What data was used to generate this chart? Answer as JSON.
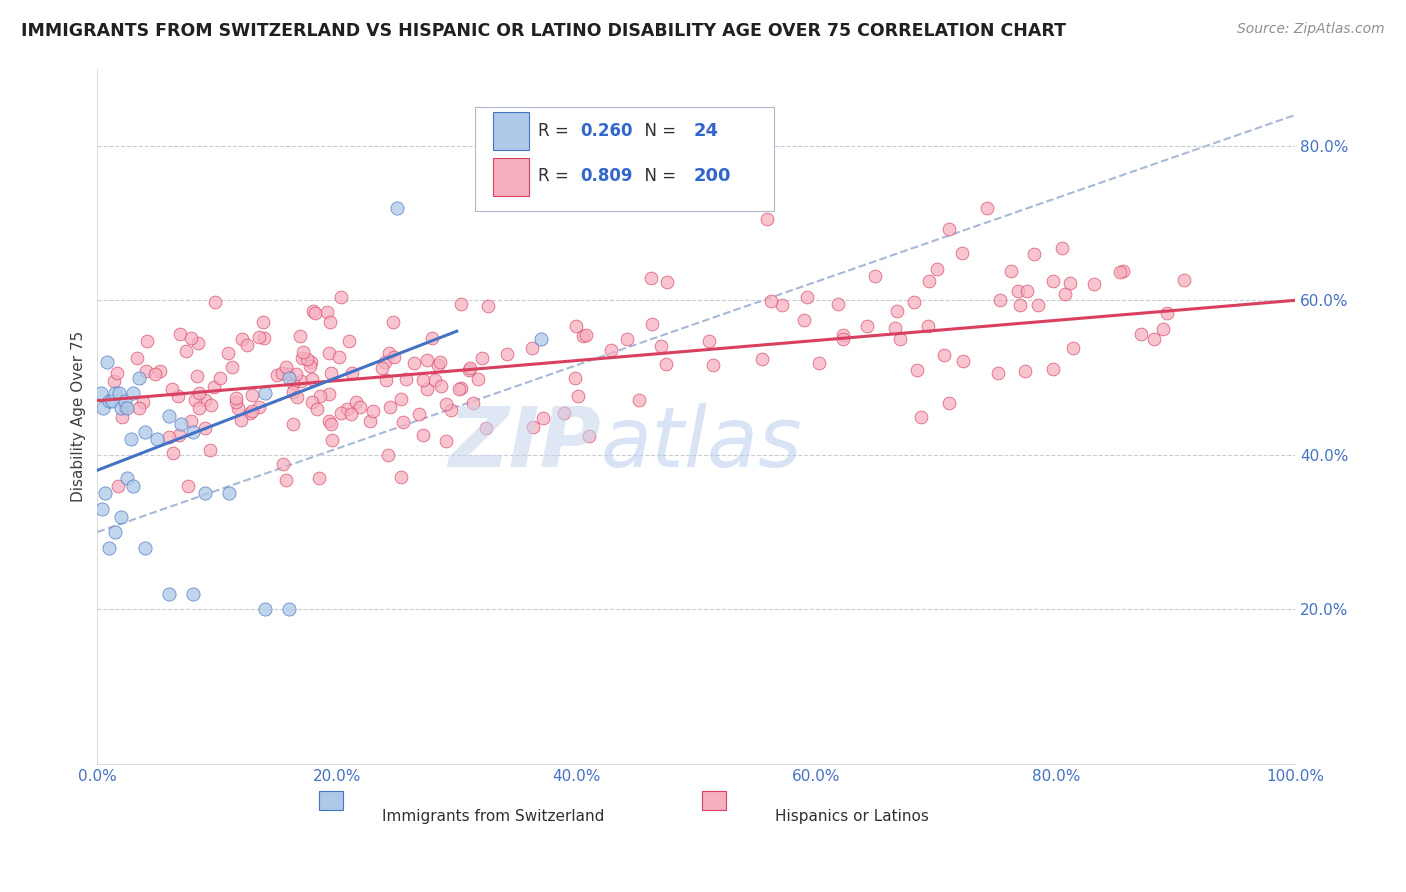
{
  "title": "IMMIGRANTS FROM SWITZERLAND VS HISPANIC OR LATINO DISABILITY AGE OVER 75 CORRELATION CHART",
  "source": "Source: ZipAtlas.com",
  "ylabel": "Disability Age Over 75",
  "r_swiss": 0.26,
  "n_swiss": 24,
  "r_hispanic": 0.809,
  "n_hispanic": 200,
  "color_swiss": "#adc8e8",
  "color_hispanic": "#f5b0c0",
  "trendline_swiss": "#4472c4",
  "trendline_hispanic": "#d94060",
  "trendline_dashed_color": "#a8b8d8",
  "watermark_zip": "ZIP",
  "watermark_atlas": "atlas",
  "watermark_zip_color": "#c8d8f0",
  "watermark_atlas_color": "#b8cce8",
  "background_color": "#ffffff",
  "grid_color": "#c8ccd8",
  "tick_label_color": "#4472c4",
  "xlim": [
    0,
    100
  ],
  "ylim": [
    0,
    90
  ],
  "ytick_values": [
    20,
    40,
    60,
    80
  ],
  "xtick_values": [
    0,
    20,
    40,
    60,
    80,
    100
  ],
  "swiss_trendline_x0": 0,
  "swiss_trendline_y0": 38.0,
  "swiss_trendline_x1": 30,
  "swiss_trendline_y1": 56.0,
  "hisp_trendline_x0": 0,
  "hisp_trendline_y0": 47.0,
  "hisp_trendline_x1": 100,
  "hisp_trendline_y1": 60.0,
  "dashed_x0": 0,
  "dashed_y0": 30.0,
  "dashed_x1": 100,
  "dashed_y1": 84.0,
  "legend_r_color": "#404040",
  "legend_n_color": "#404040",
  "legend_val_color": "#3366cc",
  "legend_border_color": "#b0b8cc"
}
